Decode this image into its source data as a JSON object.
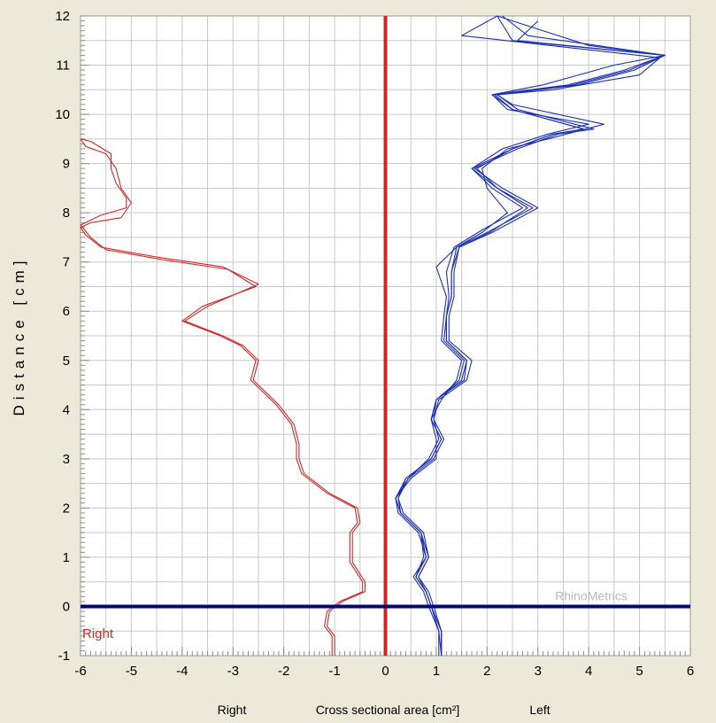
{
  "chart_data": {
    "type": "line",
    "title": "",
    "xlabel": "Cross sectional area [cm²]",
    "xlabel_left_side": "Right",
    "xlabel_right_side": "Left",
    "ylabel": "Distance [cm]",
    "xlim": [
      -6,
      6
    ],
    "ylim": [
      -1,
      12
    ],
    "x_ticks": [
      -6,
      -5,
      -4,
      -3,
      -2,
      -1,
      0,
      1,
      2,
      3,
      4,
      5,
      6
    ],
    "y_ticks": [
      -1,
      0,
      1,
      2,
      3,
      4,
      5,
      6,
      7,
      8,
      9,
      10,
      11,
      12
    ],
    "grid": true,
    "watermark": "RhinoMetrics",
    "side_tag": "Right",
    "reference_lines": [
      {
        "orientation": "vertical",
        "value": 0,
        "color": "#dd1f1f"
      },
      {
        "orientation": "horizontal",
        "value": 0,
        "color": "#000080"
      }
    ],
    "series": [
      {
        "side": "right",
        "color": "#cc2a2a",
        "points": [
          [
            -1.0,
            -1.0
          ],
          [
            -1.0,
            -0.6
          ],
          [
            -1.15,
            -0.4
          ],
          [
            -1.1,
            -0.1
          ],
          [
            -0.85,
            0.1
          ],
          [
            -0.4,
            0.3
          ],
          [
            -0.4,
            0.5
          ],
          [
            -0.65,
            0.9
          ],
          [
            -0.65,
            1.5
          ],
          [
            -0.5,
            1.7
          ],
          [
            -0.55,
            2.0
          ],
          [
            -1.1,
            2.3
          ],
          [
            -1.6,
            2.7
          ],
          [
            -1.7,
            3.0
          ],
          [
            -1.7,
            3.3
          ],
          [
            -1.8,
            3.7
          ],
          [
            -2.1,
            4.1
          ],
          [
            -2.4,
            4.4
          ],
          [
            -2.6,
            4.6
          ],
          [
            -2.5,
            5.0
          ],
          [
            -2.8,
            5.3
          ],
          [
            -3.2,
            5.5
          ],
          [
            -3.95,
            5.8
          ],
          [
            -3.5,
            6.1
          ],
          [
            -2.5,
            6.55
          ],
          [
            -3.2,
            6.9
          ],
          [
            -4.5,
            7.1
          ],
          [
            -5.6,
            7.3
          ],
          [
            -5.9,
            7.55
          ],
          [
            -6.0,
            7.7
          ],
          [
            -5.8,
            7.8
          ],
          [
            -5.2,
            7.9
          ],
          [
            -5.0,
            8.2
          ],
          [
            -5.2,
            8.5
          ],
          [
            -5.3,
            8.9
          ],
          [
            -5.5,
            9.2
          ],
          [
            -5.9,
            9.35
          ],
          [
            -6.0,
            9.5
          ]
        ]
      },
      {
        "side": "right",
        "color": "#cc2a2a",
        "points": [
          [
            -1.05,
            -1.0
          ],
          [
            -1.05,
            -0.6
          ],
          [
            -1.2,
            -0.4
          ],
          [
            -1.15,
            -0.1
          ],
          [
            -0.9,
            0.1
          ],
          [
            -0.45,
            0.3
          ],
          [
            -0.45,
            0.5
          ],
          [
            -0.7,
            0.9
          ],
          [
            -0.7,
            1.5
          ],
          [
            -0.55,
            1.7
          ],
          [
            -0.6,
            2.0
          ],
          [
            -1.15,
            2.3
          ],
          [
            -1.65,
            2.7
          ],
          [
            -1.75,
            3.0
          ],
          [
            -1.75,
            3.3
          ],
          [
            -1.85,
            3.7
          ],
          [
            -2.15,
            4.1
          ],
          [
            -2.45,
            4.4
          ],
          [
            -2.65,
            4.6
          ],
          [
            -2.55,
            5.0
          ],
          [
            -2.85,
            5.3
          ],
          [
            -3.25,
            5.5
          ],
          [
            -4.0,
            5.8
          ],
          [
            -3.6,
            6.1
          ],
          [
            -2.55,
            6.5
          ],
          [
            -3.1,
            6.85
          ],
          [
            -4.4,
            7.05
          ],
          [
            -5.5,
            7.25
          ],
          [
            -5.8,
            7.5
          ],
          [
            -6.0,
            7.75
          ],
          [
            -5.6,
            7.95
          ],
          [
            -5.1,
            8.1
          ],
          [
            -5.1,
            8.3
          ],
          [
            -5.3,
            8.6
          ],
          [
            -5.4,
            8.9
          ],
          [
            -5.4,
            9.2
          ],
          [
            -5.8,
            9.45
          ],
          [
            -6.0,
            9.5
          ]
        ]
      },
      {
        "side": "left",
        "color": "#1c2fb0",
        "points": [
          [
            1.1,
            -1.0
          ],
          [
            1.1,
            -0.5
          ],
          [
            0.9,
            0.0
          ],
          [
            0.8,
            0.3
          ],
          [
            0.6,
            0.6
          ],
          [
            0.8,
            1.0
          ],
          [
            0.7,
            1.5
          ],
          [
            0.3,
            1.9
          ],
          [
            0.2,
            2.2
          ],
          [
            0.4,
            2.6
          ],
          [
            0.9,
            3.0
          ],
          [
            1.1,
            3.4
          ],
          [
            0.9,
            3.8
          ],
          [
            1.0,
            4.2
          ],
          [
            1.5,
            4.6
          ],
          [
            1.6,
            5.0
          ],
          [
            1.2,
            5.4
          ],
          [
            1.2,
            5.9
          ],
          [
            1.3,
            6.3
          ],
          [
            1.3,
            6.8
          ],
          [
            1.4,
            7.3
          ],
          [
            2.0,
            7.6
          ],
          [
            2.9,
            8.1
          ],
          [
            2.2,
            8.5
          ],
          [
            1.7,
            8.9
          ],
          [
            2.5,
            9.3
          ],
          [
            3.3,
            9.6
          ],
          [
            3.9,
            9.7
          ],
          [
            2.5,
            10.1
          ],
          [
            2.1,
            10.4
          ],
          [
            3.6,
            10.6
          ],
          [
            4.7,
            10.9
          ],
          [
            5.5,
            11.2
          ],
          [
            2.5,
            11.5
          ],
          [
            2.2,
            12.0
          ]
        ]
      },
      {
        "side": "left",
        "color": "#1c2fb0",
        "points": [
          [
            1.1,
            -1.0
          ],
          [
            1.1,
            -0.5
          ],
          [
            0.95,
            0.0
          ],
          [
            0.85,
            0.3
          ],
          [
            0.65,
            0.6
          ],
          [
            0.85,
            1.0
          ],
          [
            0.75,
            1.5
          ],
          [
            0.35,
            1.9
          ],
          [
            0.25,
            2.2
          ],
          [
            0.45,
            2.6
          ],
          [
            0.95,
            3.0
          ],
          [
            1.15,
            3.4
          ],
          [
            0.95,
            3.8
          ],
          [
            1.05,
            4.2
          ],
          [
            1.6,
            4.6
          ],
          [
            1.7,
            5.0
          ],
          [
            1.25,
            5.4
          ],
          [
            1.25,
            5.9
          ],
          [
            1.35,
            6.3
          ],
          [
            1.35,
            6.8
          ],
          [
            1.45,
            7.3
          ],
          [
            2.1,
            7.6
          ],
          [
            3.0,
            8.1
          ],
          [
            2.3,
            8.5
          ],
          [
            1.75,
            8.9
          ],
          [
            2.6,
            9.3
          ],
          [
            3.4,
            9.6
          ],
          [
            4.1,
            9.7
          ],
          [
            2.6,
            10.1
          ],
          [
            2.2,
            10.4
          ],
          [
            3.8,
            10.6
          ],
          [
            4.9,
            10.9
          ],
          [
            5.5,
            11.2
          ],
          [
            2.8,
            11.6
          ],
          [
            2.3,
            12.0
          ]
        ]
      },
      {
        "side": "left",
        "color": "#1c2fb0",
        "points": [
          [
            1.1,
            -1.0
          ],
          [
            1.1,
            -0.5
          ],
          [
            0.9,
            0.0
          ],
          [
            0.8,
            0.3
          ],
          [
            0.6,
            0.6
          ],
          [
            0.75,
            1.0
          ],
          [
            0.7,
            1.5
          ],
          [
            0.3,
            1.9
          ],
          [
            0.2,
            2.2
          ],
          [
            0.5,
            2.6
          ],
          [
            1.0,
            3.0
          ],
          [
            1.0,
            3.4
          ],
          [
            0.9,
            3.8
          ],
          [
            1.1,
            4.2
          ],
          [
            1.4,
            4.6
          ],
          [
            1.5,
            5.0
          ],
          [
            1.1,
            5.4
          ],
          [
            1.15,
            5.9
          ],
          [
            1.2,
            6.3
          ],
          [
            1.0,
            6.9
          ],
          [
            1.4,
            7.3
          ],
          [
            1.9,
            7.6
          ],
          [
            2.4,
            8.0
          ],
          [
            2.0,
            8.5
          ],
          [
            1.9,
            8.9
          ],
          [
            2.4,
            9.3
          ],
          [
            3.2,
            9.5
          ],
          [
            4.3,
            9.8
          ],
          [
            2.5,
            10.2
          ],
          [
            2.2,
            10.4
          ],
          [
            3.3,
            10.5
          ],
          [
            5.0,
            10.8
          ],
          [
            5.4,
            11.15
          ],
          [
            1.5,
            11.6
          ],
          [
            2.2,
            12.0
          ]
        ]
      },
      {
        "side": "left",
        "color": "#1c2fb0",
        "points": [
          [
            1.05,
            -1.0
          ],
          [
            1.05,
            -0.5
          ],
          [
            0.85,
            0.0
          ],
          [
            0.75,
            0.3
          ],
          [
            0.55,
            0.6
          ],
          [
            0.8,
            1.0
          ],
          [
            0.65,
            1.5
          ],
          [
            0.25,
            1.9
          ],
          [
            0.2,
            2.2
          ],
          [
            0.45,
            2.6
          ],
          [
            0.85,
            3.0
          ],
          [
            1.05,
            3.4
          ],
          [
            0.95,
            3.8
          ],
          [
            1.0,
            4.2
          ],
          [
            1.45,
            4.6
          ],
          [
            1.55,
            5.0
          ],
          [
            1.15,
            5.4
          ],
          [
            1.2,
            5.9
          ],
          [
            1.25,
            6.3
          ],
          [
            1.2,
            6.8
          ],
          [
            1.35,
            7.3
          ],
          [
            1.9,
            7.65
          ],
          [
            2.7,
            8.1
          ],
          [
            2.1,
            8.5
          ],
          [
            1.7,
            8.9
          ],
          [
            2.3,
            9.3
          ],
          [
            3.2,
            9.6
          ],
          [
            4.0,
            9.8
          ],
          [
            2.4,
            10.1
          ],
          [
            2.1,
            10.4
          ],
          [
            3.1,
            10.6
          ],
          [
            4.5,
            11.0
          ],
          [
            5.5,
            11.2
          ],
          [
            2.6,
            11.5
          ],
          [
            3.0,
            11.9
          ]
        ]
      },
      {
        "side": "left",
        "color": "#1c2fb0",
        "points": [
          [
            1.1,
            -1.0
          ],
          [
            1.05,
            -0.5
          ],
          [
            0.9,
            0.0
          ],
          [
            0.8,
            0.3
          ],
          [
            0.65,
            0.6
          ],
          [
            0.85,
            1.0
          ],
          [
            0.7,
            1.5
          ],
          [
            0.3,
            1.9
          ],
          [
            0.25,
            2.2
          ],
          [
            0.4,
            2.6
          ],
          [
            0.9,
            3.0
          ],
          [
            1.1,
            3.4
          ],
          [
            0.9,
            3.8
          ],
          [
            1.0,
            4.2
          ],
          [
            1.55,
            4.6
          ],
          [
            1.6,
            5.0
          ],
          [
            1.2,
            5.4
          ],
          [
            1.2,
            5.9
          ],
          [
            1.3,
            6.3
          ],
          [
            1.3,
            6.8
          ],
          [
            1.45,
            7.3
          ],
          [
            2.05,
            7.6
          ],
          [
            2.8,
            8.1
          ],
          [
            2.2,
            8.5
          ],
          [
            1.8,
            8.9
          ],
          [
            2.5,
            9.3
          ],
          [
            3.3,
            9.6
          ],
          [
            3.9,
            9.7
          ],
          [
            2.5,
            10.1
          ],
          [
            2.15,
            10.4
          ],
          [
            3.7,
            10.6
          ],
          [
            4.8,
            10.9
          ],
          [
            5.5,
            11.2
          ],
          [
            4.0,
            11.4
          ],
          [
            2.2,
            12.0
          ]
        ]
      }
    ]
  }
}
